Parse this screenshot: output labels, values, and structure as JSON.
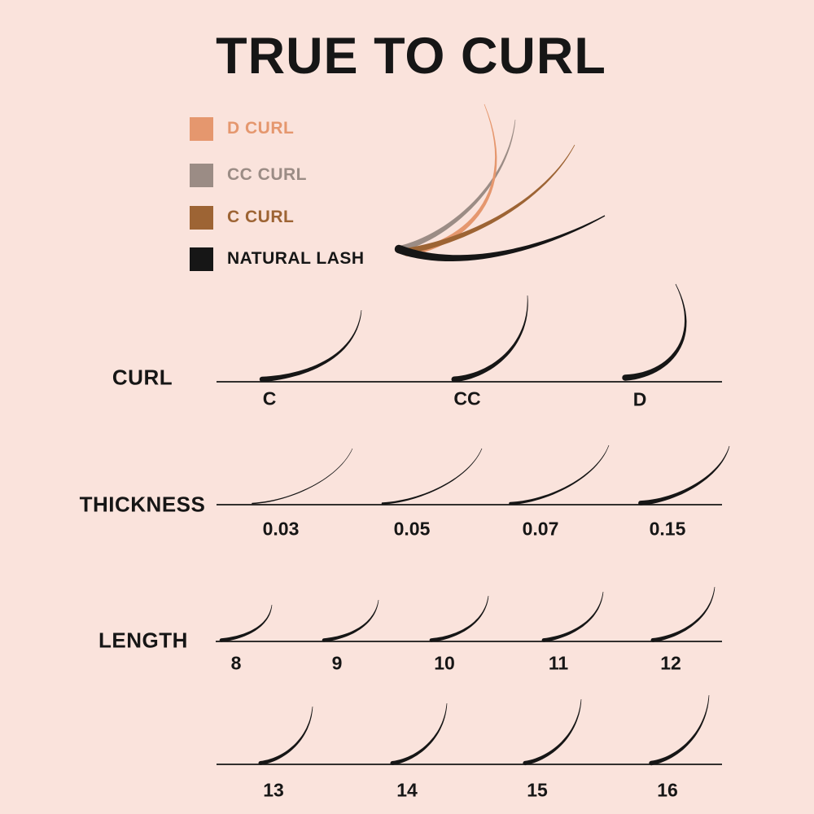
{
  "title": "TRUE TO CURL",
  "background_color": "#FAE3DC",
  "ink_color": "#161616",
  "legend": {
    "items": [
      {
        "label": "D CURL",
        "color": "#E5976E"
      },
      {
        "label": "CC CURL",
        "color": "#9B8C85"
      },
      {
        "label": "C CURL",
        "color": "#9D6434"
      },
      {
        "label": "NATURAL LASH",
        "color": "#161616"
      }
    ]
  },
  "rows": [
    {
      "label": "CURL",
      "items": [
        "C",
        "CC",
        "D"
      ]
    },
    {
      "label": "THICKNESS",
      "items": [
        "0.03",
        "0.05",
        "0.07",
        "0.15"
      ]
    },
    {
      "label": "LENGTH",
      "items": [
        "8",
        "9",
        "10",
        "11",
        "12"
      ]
    },
    {
      "label": "",
      "items": [
        "13",
        "14",
        "15",
        "16"
      ]
    }
  ]
}
